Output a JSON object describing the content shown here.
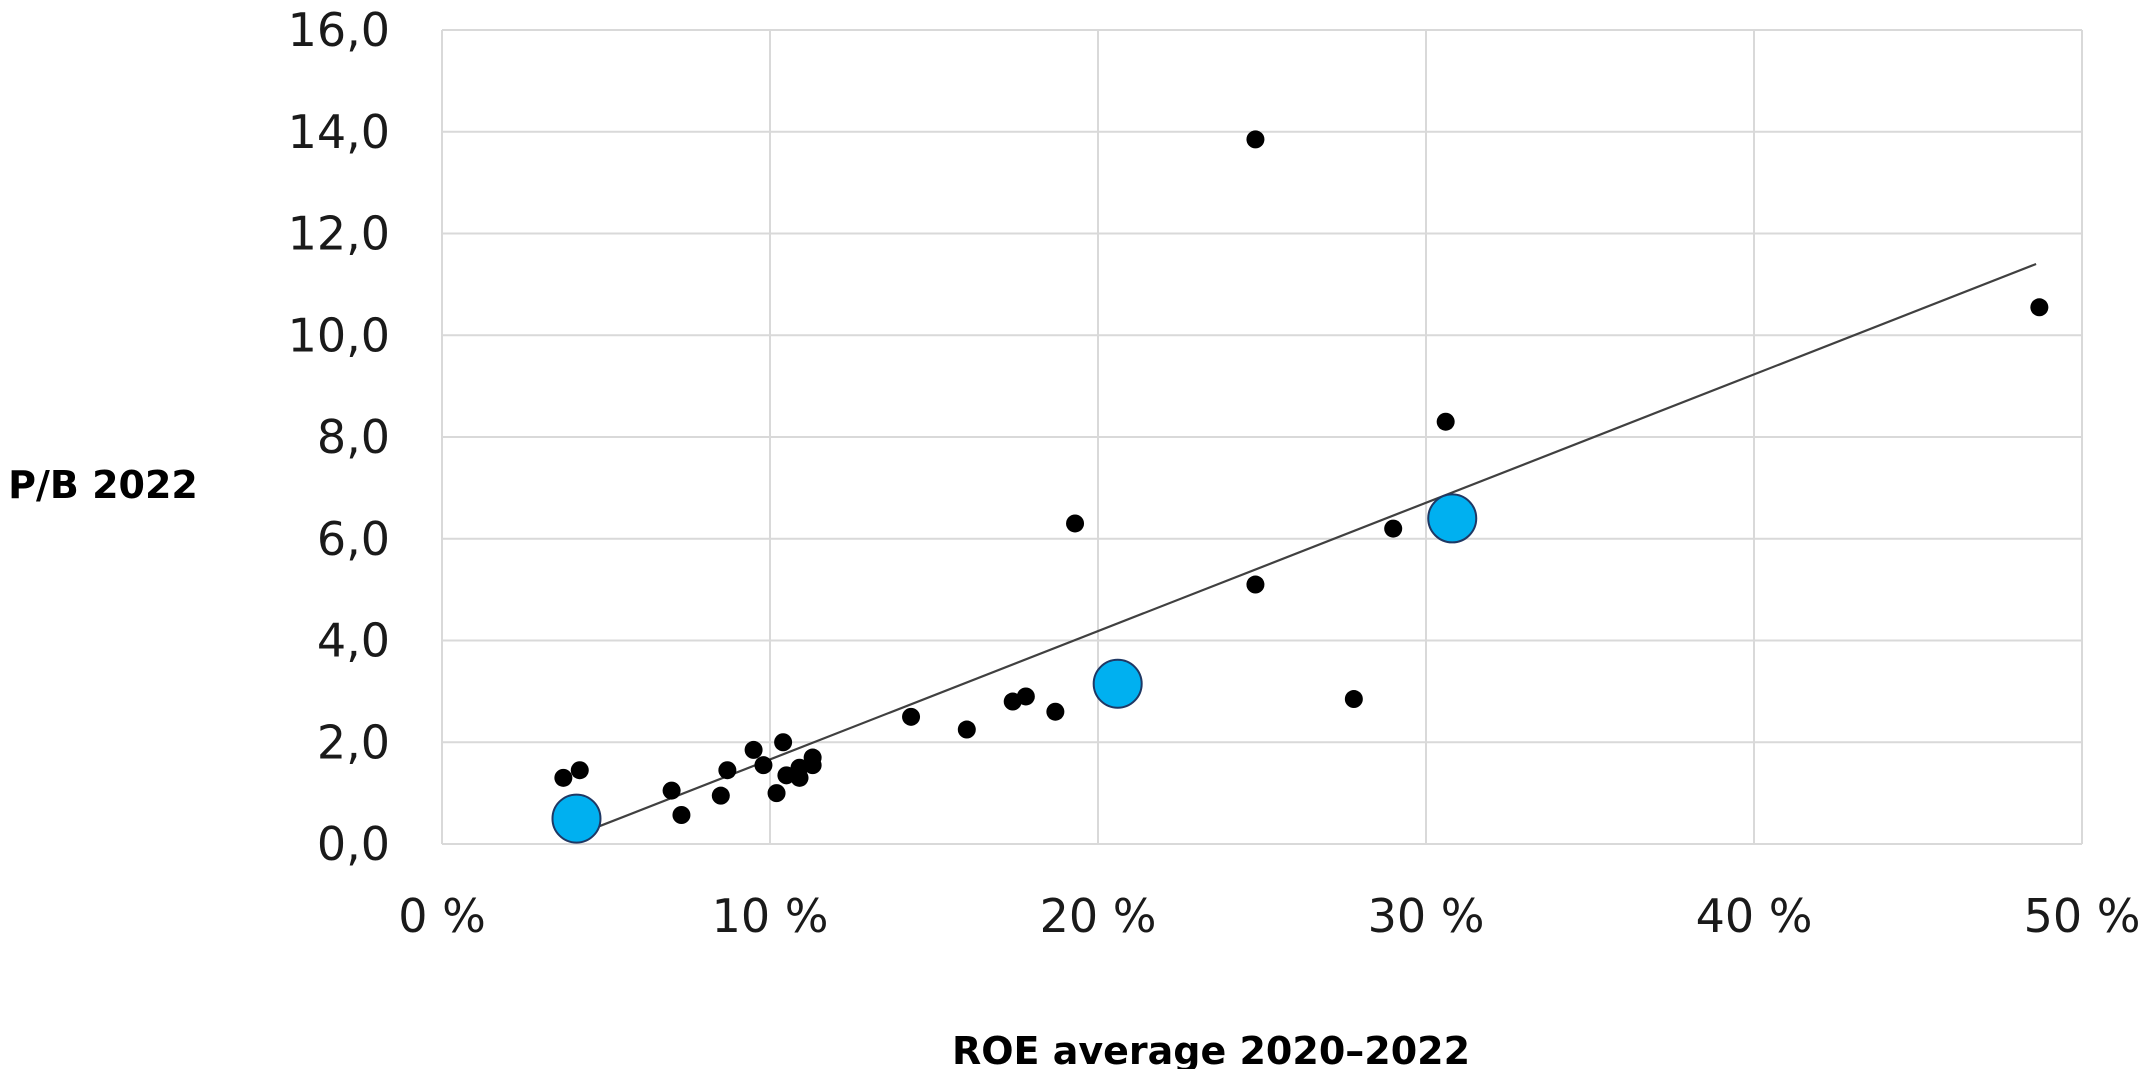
{
  "chart_data": {
    "type": "scatter",
    "xlabel": "ROE average 2020–2022",
    "ylabel": "P/B 2022",
    "xlim": [
      0,
      50
    ],
    "ylim": [
      0,
      16
    ],
    "x_ticks": [
      0,
      10,
      20,
      30,
      40,
      50
    ],
    "x_tick_labels": [
      "0 %",
      "10 %",
      "20 %",
      "30 %",
      "40 %",
      "50 %"
    ],
    "y_ticks": [
      0,
      2,
      4,
      6,
      8,
      10,
      12,
      14,
      16
    ],
    "y_tick_labels": [
      "0,0",
      "2,0",
      "4,0",
      "6,0",
      "8,0",
      "10,0",
      "12,0",
      "14,0",
      "16,0"
    ],
    "grid": true,
    "colors": {
      "points": "#000000",
      "highlight": "#00b0f0",
      "highlight_stroke": "#1f3864",
      "trendline": "#404040",
      "grid": "#d9d9d9"
    },
    "series": [
      {
        "marker": "small-black",
        "points": [
          [
            3.7,
            1.3
          ],
          [
            4.2,
            1.45
          ],
          [
            7.0,
            1.05
          ],
          [
            7.3,
            0.57
          ],
          [
            8.5,
            0.95
          ],
          [
            8.7,
            1.45
          ],
          [
            9.5,
            1.85
          ],
          [
            9.8,
            1.55
          ],
          [
            10.2,
            1.0
          ],
          [
            10.4,
            2.0
          ],
          [
            10.5,
            1.35
          ],
          [
            10.9,
            1.5
          ],
          [
            10.9,
            1.3
          ],
          [
            11.3,
            1.55
          ],
          [
            11.3,
            1.7
          ],
          [
            14.3,
            2.5
          ],
          [
            16.0,
            2.25
          ],
          [
            17.4,
            2.8
          ],
          [
            17.8,
            2.9
          ],
          [
            18.7,
            2.6
          ],
          [
            19.3,
            6.3
          ],
          [
            24.8,
            13.85
          ],
          [
            24.8,
            5.1
          ],
          [
            27.8,
            2.85
          ],
          [
            29.0,
            6.2
          ],
          [
            30.6,
            8.3
          ],
          [
            48.7,
            10.55
          ]
        ]
      },
      {
        "marker": "large-blue",
        "points": [
          [
            4.1,
            0.5
          ],
          [
            20.6,
            3.15
          ],
          [
            30.8,
            6.4
          ]
        ]
      }
    ],
    "trendline": {
      "x": [
        4.8,
        48.6
      ],
      "y": [
        0.35,
        11.4
      ]
    }
  }
}
